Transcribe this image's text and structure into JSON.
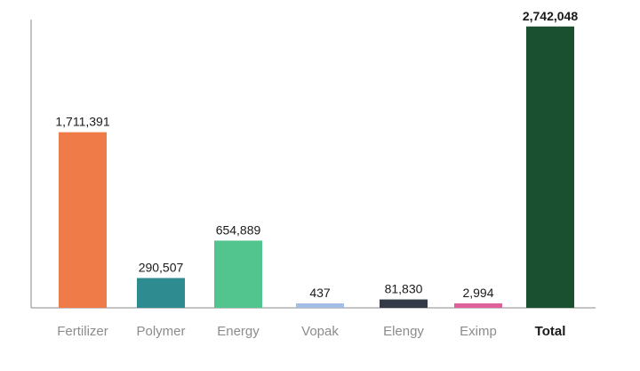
{
  "chart_data": {
    "type": "bar",
    "categories": [
      "Fertilizer",
      "Polymer",
      "Energy",
      "Vopak",
      "Elengy",
      "Eximp",
      "Total"
    ],
    "values": [
      1711391,
      290507,
      654889,
      437,
      81830,
      2994,
      2742048
    ],
    "labels": [
      "1,711,391",
      "290,507",
      "654,889",
      "437",
      "81,830",
      "2,994",
      "2,742,048"
    ],
    "colors": [
      "#ef7b48",
      "#2e8b8f",
      "#52c48d",
      "#a3bde6",
      "#343a48",
      "#e0609a",
      "#1a4f30"
    ],
    "highlight": [
      false,
      false,
      false,
      false,
      false,
      false,
      true
    ],
    "ylim": [
      0,
      3000000
    ],
    "title": "",
    "xlabel": "",
    "ylabel": "",
    "grid": false,
    "legend": "none"
  }
}
